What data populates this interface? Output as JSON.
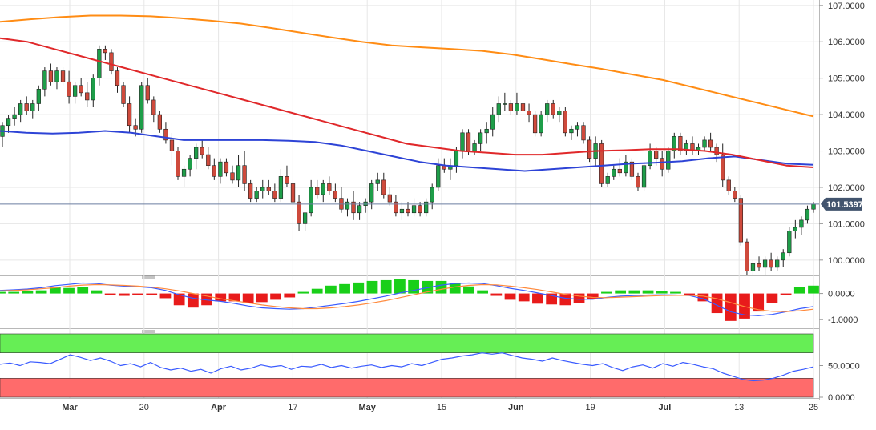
{
  "chart_data": {
    "type": "candlestick",
    "colors": {
      "bull": "#1e9e49",
      "bear": "#cf4a3c",
      "sma_fast": "#e0282a",
      "sma_mid": "#2d43d6",
      "sma_slow": "#ff8c14",
      "price_line": "#6b7ea0",
      "price_badge": "#42546e",
      "hist_pos": "#19cf19",
      "hist_neg": "#e81b1b",
      "macd": "#3a5bff",
      "signal": "#ff8a3d",
      "rsi": "#3a5bff",
      "rsi_overbought_band": "#66ee55",
      "rsi_oversold_band": "#ff6b6b",
      "grid": "#e6e6e6"
    },
    "price_panel": {
      "ylim": [
        99.6,
        107.15
      ],
      "y_ticks": [
        "107.0000",
        "106.0000",
        "105.0000",
        "104.0000",
        "103.0000",
        "102.0000",
        "101.0000",
        "100.0000"
      ],
      "y_tick_values": [
        107,
        106,
        105,
        104,
        103,
        102,
        101,
        100
      ],
      "last_price": 101.5397,
      "last_price_label": "101.5397",
      "candles": [
        [
          103.4,
          103.8,
          103.1,
          103.7
        ],
        [
          103.7,
          104.0,
          103.5,
          103.9
        ],
        [
          103.9,
          104.2,
          103.7,
          104.0
        ],
        [
          104.0,
          104.4,
          103.8,
          104.3
        ],
        [
          104.3,
          104.5,
          104.0,
          104.1
        ],
        [
          104.1,
          104.4,
          103.9,
          104.3
        ],
        [
          104.3,
          104.8,
          104.1,
          104.7
        ],
        [
          104.7,
          105.3,
          104.5,
          105.2
        ],
        [
          105.2,
          105.4,
          104.8,
          104.9
        ],
        [
          104.9,
          105.3,
          104.7,
          105.2
        ],
        [
          105.2,
          105.3,
          104.8,
          104.9
        ],
        [
          104.9,
          105.2,
          104.3,
          104.5
        ],
        [
          104.5,
          104.9,
          104.3,
          104.8
        ],
        [
          104.8,
          105.0,
          104.5,
          104.6
        ],
        [
          104.6,
          104.9,
          104.2,
          104.4
        ],
        [
          104.4,
          105.1,
          104.2,
          105.0
        ],
        [
          105.0,
          105.9,
          104.8,
          105.8
        ],
        [
          105.8,
          105.9,
          105.5,
          105.7
        ],
        [
          105.7,
          105.8,
          105.1,
          105.2
        ],
        [
          105.2,
          105.3,
          104.6,
          104.8
        ],
        [
          104.8,
          104.9,
          104.2,
          104.3
        ],
        [
          104.3,
          104.5,
          103.5,
          103.7
        ],
        [
          103.7,
          103.9,
          103.4,
          103.6
        ],
        [
          103.6,
          104.9,
          103.5,
          104.8
        ],
        [
          104.8,
          105.0,
          104.3,
          104.4
        ],
        [
          104.4,
          104.5,
          103.8,
          104.0
        ],
        [
          104.0,
          104.1,
          103.5,
          103.6
        ],
        [
          103.6,
          103.8,
          103.2,
          103.3
        ],
        [
          103.3,
          103.5,
          102.6,
          103.0
        ],
        [
          103.0,
          103.1,
          102.2,
          102.3
        ],
        [
          102.3,
          102.6,
          102.0,
          102.5
        ],
        [
          102.5,
          102.9,
          102.3,
          102.8
        ],
        [
          102.8,
          103.2,
          102.5,
          103.1
        ],
        [
          103.1,
          103.3,
          102.8,
          102.9
        ],
        [
          102.9,
          103.1,
          102.5,
          102.6
        ],
        [
          102.6,
          102.8,
          102.2,
          102.3
        ],
        [
          102.3,
          102.8,
          102.1,
          102.7
        ],
        [
          102.7,
          102.8,
          102.3,
          102.4
        ],
        [
          102.4,
          102.6,
          102.1,
          102.2
        ],
        [
          102.2,
          102.9,
          102.0,
          102.6
        ],
        [
          102.6,
          103.0,
          101.9,
          102.1
        ],
        [
          102.1,
          102.2,
          101.6,
          101.7
        ],
        [
          101.7,
          102.0,
          101.6,
          101.9
        ],
        [
          101.9,
          102.2,
          101.7,
          102.0
        ],
        [
          102.0,
          102.2,
          101.8,
          101.9
        ],
        [
          101.9,
          102.1,
          101.6,
          101.7
        ],
        [
          101.7,
          102.5,
          101.6,
          102.3
        ],
        [
          102.3,
          102.6,
          102.0,
          102.1
        ],
        [
          102.1,
          102.3,
          101.5,
          101.6
        ],
        [
          101.6,
          101.8,
          100.8,
          101.0
        ],
        [
          101.0,
          101.3,
          100.8,
          101.3
        ],
        [
          101.3,
          102.2,
          101.2,
          102.0
        ],
        [
          102.0,
          102.2,
          101.7,
          101.8
        ],
        [
          101.8,
          102.2,
          101.6,
          102.1
        ],
        [
          102.1,
          102.3,
          101.8,
          101.9
        ],
        [
          101.9,
          102.1,
          101.6,
          101.7
        ],
        [
          101.7,
          102.0,
          101.3,
          101.4
        ],
        [
          101.4,
          101.7,
          101.2,
          101.6
        ],
        [
          101.6,
          101.9,
          101.1,
          101.3
        ],
        [
          101.3,
          101.6,
          101.1,
          101.5
        ],
        [
          101.5,
          101.7,
          101.3,
          101.6
        ],
        [
          101.6,
          102.2,
          101.4,
          102.1
        ],
        [
          102.1,
          102.4,
          101.9,
          102.2
        ],
        [
          102.2,
          102.4,
          101.7,
          101.8
        ],
        [
          101.8,
          102.0,
          101.5,
          101.6
        ],
        [
          101.6,
          101.8,
          101.2,
          101.3
        ],
        [
          101.3,
          101.6,
          101.1,
          101.4
        ],
        [
          101.4,
          101.6,
          101.2,
          101.3
        ],
        [
          101.3,
          101.7,
          101.2,
          101.5
        ],
        [
          101.5,
          101.6,
          101.2,
          101.3
        ],
        [
          101.3,
          101.7,
          101.2,
          101.6
        ],
        [
          101.6,
          102.1,
          101.4,
          102.0
        ],
        [
          102.0,
          102.8,
          101.9,
          102.6
        ],
        [
          102.6,
          102.8,
          102.4,
          102.5
        ],
        [
          102.5,
          102.8,
          102.2,
          102.6
        ],
        [
          102.6,
          103.1,
          102.4,
          103.0
        ],
        [
          103.0,
          103.6,
          102.8,
          103.5
        ],
        [
          103.5,
          103.6,
          102.9,
          103.0
        ],
        [
          103.0,
          103.3,
          102.9,
          103.2
        ],
        [
          103.2,
          103.6,
          103.0,
          103.5
        ],
        [
          103.5,
          103.8,
          103.2,
          103.6
        ],
        [
          103.6,
          104.2,
          103.4,
          104.0
        ],
        [
          104.0,
          104.5,
          103.8,
          104.3
        ],
        [
          104.3,
          104.6,
          104.1,
          104.3
        ],
        [
          104.3,
          104.4,
          104.0,
          104.1
        ],
        [
          104.1,
          104.6,
          104.0,
          104.3
        ],
        [
          104.3,
          104.7,
          104.0,
          104.1
        ],
        [
          104.1,
          104.3,
          103.8,
          104.0
        ],
        [
          104.0,
          104.1,
          103.4,
          103.5
        ],
        [
          103.5,
          104.1,
          103.4,
          104.0
        ],
        [
          104.0,
          104.4,
          103.8,
          104.3
        ],
        [
          104.3,
          104.4,
          103.9,
          104.0
        ],
        [
          104.0,
          104.2,
          103.8,
          104.1
        ],
        [
          104.1,
          104.2,
          103.4,
          103.5
        ],
        [
          103.5,
          103.7,
          103.3,
          103.6
        ],
        [
          103.6,
          103.8,
          103.4,
          103.7
        ],
        [
          103.7,
          103.8,
          103.2,
          103.3
        ],
        [
          103.3,
          103.4,
          102.7,
          102.8
        ],
        [
          102.8,
          103.4,
          102.6,
          103.2
        ],
        [
          103.2,
          103.3,
          102.0,
          102.1
        ],
        [
          102.1,
          102.4,
          102.0,
          102.3
        ],
        [
          102.3,
          102.6,
          102.2,
          102.5
        ],
        [
          102.5,
          102.8,
          102.3,
          102.4
        ],
        [
          102.4,
          102.9,
          102.3,
          102.7
        ],
        [
          102.7,
          102.8,
          102.2,
          102.3
        ],
        [
          102.3,
          102.4,
          101.9,
          102.0
        ],
        [
          102.0,
          102.7,
          101.9,
          102.6
        ],
        [
          102.6,
          103.2,
          102.5,
          103.0
        ],
        [
          103.0,
          103.1,
          102.6,
          102.8
        ],
        [
          102.8,
          103.0,
          102.3,
          102.5
        ],
        [
          102.5,
          103.1,
          102.4,
          103.0
        ],
        [
          103.0,
          103.5,
          102.8,
          103.4
        ],
        [
          103.4,
          103.5,
          102.9,
          103.0
        ],
        [
          103.0,
          103.3,
          102.9,
          103.2
        ],
        [
          103.2,
          103.4,
          102.9,
          103.0
        ],
        [
          103.0,
          103.2,
          102.9,
          103.1
        ],
        [
          103.1,
          103.4,
          103.0,
          103.3
        ],
        [
          103.3,
          103.5,
          103.0,
          103.1
        ],
        [
          103.1,
          103.2,
          102.7,
          102.9
        ],
        [
          102.9,
          103.2,
          102.0,
          102.2
        ],
        [
          102.2,
          102.3,
          101.8,
          101.9
        ],
        [
          101.9,
          102.0,
          101.6,
          101.7
        ],
        [
          101.7,
          101.8,
          100.4,
          100.5
        ],
        [
          100.5,
          100.6,
          99.6,
          99.7
        ],
        [
          99.7,
          100.0,
          99.6,
          99.9
        ],
        [
          99.9,
          100.1,
          99.7,
          99.8
        ],
        [
          99.8,
          100.1,
          99.6,
          100.0
        ],
        [
          100.0,
          100.2,
          99.7,
          99.8
        ],
        [
          99.8,
          100.1,
          99.7,
          100.0
        ],
        [
          100.0,
          100.3,
          99.8,
          100.2
        ],
        [
          100.2,
          100.9,
          100.1,
          100.8
        ],
        [
          100.8,
          101.1,
          100.6,
          100.9
        ],
        [
          100.9,
          101.2,
          100.7,
          101.1
        ],
        [
          101.1,
          101.5,
          101.0,
          101.4
        ],
        [
          101.4,
          101.6,
          101.3,
          101.5397
        ]
      ],
      "sma_fast": [
        106.1,
        106.0,
        105.8,
        105.6,
        105.4,
        105.2,
        105.0,
        104.8,
        104.6,
        104.4,
        104.2,
        104.0,
        103.8,
        103.6,
        103.4,
        103.2,
        103.1,
        103.0,
        102.95,
        102.9,
        102.9,
        102.95,
        103.0,
        103.02,
        103.05,
        103.05,
        103.0,
        102.9,
        102.75,
        102.6,
        102.55
      ],
      "sma_mid": [
        103.55,
        103.5,
        103.48,
        103.5,
        103.55,
        103.5,
        103.4,
        103.3,
        103.3,
        103.3,
        103.3,
        103.28,
        103.25,
        103.15,
        103.0,
        102.85,
        102.7,
        102.6,
        102.55,
        102.5,
        102.45,
        102.5,
        102.55,
        102.6,
        102.65,
        102.68,
        102.72,
        102.8,
        102.85,
        102.75,
        102.65,
        102.62
      ],
      "sma_slow": [
        106.55,
        106.62,
        106.68,
        106.72,
        106.72,
        106.7,
        106.65,
        106.58,
        106.5,
        106.38,
        106.25,
        106.12,
        106.0,
        105.9,
        105.85,
        105.8,
        105.75,
        105.65,
        105.52,
        105.38,
        105.25,
        105.1,
        104.95,
        104.75,
        104.55,
        104.35,
        104.15,
        103.95
      ]
    },
    "macd_panel": {
      "ylim": [
        -1.3,
        0.6
      ],
      "y_ticks": [
        "0.0000",
        "-1.0000"
      ],
      "y_tick_values": [
        0,
        -1
      ],
      "macd": [
        0.12,
        0.14,
        0.17,
        0.22,
        0.3,
        0.35,
        0.4,
        0.38,
        0.32,
        0.28,
        0.26,
        0.22,
        0.12,
        -0.05,
        -0.18,
        -0.25,
        -0.3,
        -0.38,
        -0.48,
        -0.55,
        -0.58,
        -0.6,
        -0.58,
        -0.52,
        -0.45,
        -0.38,
        -0.3,
        -0.2,
        -0.1,
        0.02,
        0.12,
        0.22,
        0.32,
        0.38,
        0.4,
        0.38,
        0.3,
        0.2,
        0.12,
        0.02,
        -0.08,
        -0.18,
        -0.22,
        -0.22,
        -0.15,
        -0.1,
        -0.08,
        -0.06,
        -0.05,
        -0.06,
        -0.08,
        -0.2,
        -0.45,
        -0.7,
        -0.82,
        -0.85,
        -0.8,
        -0.7,
        -0.58,
        -0.5
      ],
      "signal": [
        0.1,
        0.12,
        0.14,
        0.18,
        0.22,
        0.28,
        0.32,
        0.34,
        0.33,
        0.31,
        0.28,
        0.24,
        0.18,
        0.1,
        0.0,
        -0.1,
        -0.2,
        -0.28,
        -0.36,
        -0.44,
        -0.5,
        -0.55,
        -0.58,
        -0.58,
        -0.55,
        -0.5,
        -0.44,
        -0.36,
        -0.27,
        -0.16,
        -0.05,
        0.06,
        0.16,
        0.25,
        0.31,
        0.34,
        0.33,
        0.28,
        0.22,
        0.15,
        0.06,
        -0.03,
        -0.1,
        -0.15,
        -0.16,
        -0.14,
        -0.12,
        -0.1,
        -0.08,
        -0.07,
        -0.07,
        -0.1,
        -0.2,
        -0.35,
        -0.5,
        -0.62,
        -0.68,
        -0.69,
        -0.66,
        -0.6
      ]
    },
    "rsi_panel": {
      "ylim": [
        0,
        100
      ],
      "y_ticks": [
        "50.0000",
        "0.0000"
      ],
      "y_tick_values": [
        50,
        0
      ],
      "overbought": 70,
      "oversold": 30,
      "rsi": [
        52,
        54,
        50,
        56,
        55,
        53,
        60,
        67,
        63,
        58,
        62,
        57,
        50,
        53,
        48,
        55,
        47,
        43,
        46,
        41,
        44,
        38,
        45,
        49,
        43,
        46,
        51,
        48,
        50,
        44,
        49,
        48,
        52,
        47,
        50,
        46,
        49,
        51,
        47,
        50,
        48,
        53,
        50,
        55,
        60,
        62,
        65,
        67,
        70,
        68,
        70,
        66,
        62,
        60,
        57,
        62,
        58,
        55,
        52,
        50,
        53,
        47,
        42,
        48,
        51,
        46,
        53,
        49,
        55,
        52,
        48,
        45,
        38,
        33,
        28,
        26,
        27,
        30,
        35,
        41,
        44,
        48
      ]
    },
    "x_tick_labels": [
      "Mar",
      "20",
      "Apr",
      "17",
      "May",
      "15",
      "Jun",
      "19",
      "Jul",
      "13",
      "25"
    ],
    "x_tick_bold": [
      true,
      false,
      true,
      false,
      true,
      false,
      true,
      false,
      true,
      false,
      false
    ]
  }
}
